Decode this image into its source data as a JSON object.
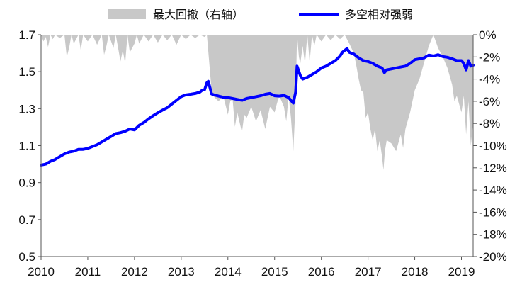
{
  "chart_data": {
    "type": "line",
    "legend": {
      "position": "top",
      "items": [
        {
          "key": "drawdown",
          "label": "最大回撤（右轴）",
          "color": "#c8c8c8",
          "marker": "area"
        },
        {
          "key": "relative",
          "label": "多空相对强弱",
          "color": "#0000ff",
          "marker": "line"
        }
      ]
    },
    "x_axis": {
      "ticks": [
        "2010",
        "2011",
        "2012",
        "2013",
        "2014",
        "2015",
        "2016",
        "2017",
        "2018",
        "2019"
      ],
      "range": [
        2010.0,
        2019.25
      ]
    },
    "y_left": {
      "ticks": [
        "0.5",
        "0.7",
        "0.9",
        "1.1",
        "1.3",
        "1.5",
        "1.7"
      ],
      "range": [
        0.5,
        1.7
      ]
    },
    "y_right": {
      "ticks": [
        "0%",
        "-2%",
        "-4%",
        "-6%",
        "-8%",
        "-10%",
        "-12%",
        "-14%",
        "-16%",
        "-18%",
        "-20%"
      ],
      "range": [
        -20,
        0
      ],
      "unit": "%"
    },
    "grid": false,
    "series": [
      {
        "key": "relative",
        "axis": "left",
        "points": [
          [
            2010.0,
            0.995
          ],
          [
            2010.1,
            1.0
          ],
          [
            2010.2,
            1.015
          ],
          [
            2010.3,
            1.025
          ],
          [
            2010.4,
            1.04
          ],
          [
            2010.5,
            1.055
          ],
          [
            2010.6,
            1.065
          ],
          [
            2010.7,
            1.07
          ],
          [
            2010.8,
            1.08
          ],
          [
            2010.9,
            1.08
          ],
          [
            2011.0,
            1.085
          ],
          [
            2011.1,
            1.095
          ],
          [
            2011.2,
            1.105
          ],
          [
            2011.3,
            1.12
          ],
          [
            2011.4,
            1.135
          ],
          [
            2011.5,
            1.15
          ],
          [
            2011.6,
            1.165
          ],
          [
            2011.7,
            1.17
          ],
          [
            2011.8,
            1.178
          ],
          [
            2011.9,
            1.19
          ],
          [
            2012.0,
            1.185
          ],
          [
            2012.1,
            1.21
          ],
          [
            2012.2,
            1.225
          ],
          [
            2012.3,
            1.245
          ],
          [
            2012.4,
            1.262
          ],
          [
            2012.5,
            1.278
          ],
          [
            2012.6,
            1.292
          ],
          [
            2012.7,
            1.305
          ],
          [
            2012.8,
            1.325
          ],
          [
            2012.9,
            1.345
          ],
          [
            2013.0,
            1.365
          ],
          [
            2013.1,
            1.375
          ],
          [
            2013.2,
            1.378
          ],
          [
            2013.3,
            1.382
          ],
          [
            2013.4,
            1.39
          ],
          [
            2013.45,
            1.4
          ],
          [
            2013.5,
            1.402
          ],
          [
            2013.55,
            1.44
          ],
          [
            2013.58,
            1.448
          ],
          [
            2013.62,
            1.41
          ],
          [
            2013.65,
            1.38
          ],
          [
            2013.7,
            1.375
          ],
          [
            2013.8,
            1.368
          ],
          [
            2013.9,
            1.362
          ],
          [
            2014.0,
            1.36
          ],
          [
            2014.1,
            1.355
          ],
          [
            2014.2,
            1.35
          ],
          [
            2014.3,
            1.345
          ],
          [
            2014.4,
            1.355
          ],
          [
            2014.5,
            1.36
          ],
          [
            2014.6,
            1.365
          ],
          [
            2014.7,
            1.37
          ],
          [
            2014.8,
            1.378
          ],
          [
            2014.9,
            1.382
          ],
          [
            2015.0,
            1.37
          ],
          [
            2015.1,
            1.368
          ],
          [
            2015.2,
            1.372
          ],
          [
            2015.3,
            1.36
          ],
          [
            2015.4,
            1.33
          ],
          [
            2015.45,
            1.39
          ],
          [
            2015.48,
            1.53
          ],
          [
            2015.55,
            1.48
          ],
          [
            2015.6,
            1.46
          ],
          [
            2015.7,
            1.47
          ],
          [
            2015.8,
            1.485
          ],
          [
            2015.9,
            1.5
          ],
          [
            2016.0,
            1.52
          ],
          [
            2016.1,
            1.53
          ],
          [
            2016.2,
            1.545
          ],
          [
            2016.3,
            1.56
          ],
          [
            2016.4,
            1.585
          ],
          [
            2016.45,
            1.605
          ],
          [
            2016.5,
            1.615
          ],
          [
            2016.55,
            1.625
          ],
          [
            2016.6,
            1.605
          ],
          [
            2016.7,
            1.595
          ],
          [
            2016.8,
            1.575
          ],
          [
            2016.9,
            1.56
          ],
          [
            2017.0,
            1.555
          ],
          [
            2017.1,
            1.545
          ],
          [
            2017.2,
            1.53
          ],
          [
            2017.3,
            1.52
          ],
          [
            2017.35,
            1.495
          ],
          [
            2017.4,
            1.51
          ],
          [
            2017.5,
            1.515
          ],
          [
            2017.6,
            1.52
          ],
          [
            2017.7,
            1.525
          ],
          [
            2017.8,
            1.53
          ],
          [
            2017.9,
            1.545
          ],
          [
            2018.0,
            1.565
          ],
          [
            2018.1,
            1.57
          ],
          [
            2018.2,
            1.575
          ],
          [
            2018.3,
            1.59
          ],
          [
            2018.4,
            1.585
          ],
          [
            2018.5,
            1.592
          ],
          [
            2018.6,
            1.582
          ],
          [
            2018.7,
            1.578
          ],
          [
            2018.8,
            1.57
          ],
          [
            2018.9,
            1.56
          ],
          [
            2019.0,
            1.56
          ],
          [
            2019.05,
            1.545
          ],
          [
            2019.1,
            1.51
          ],
          [
            2019.15,
            1.56
          ],
          [
            2019.2,
            1.53
          ],
          [
            2019.25,
            1.535
          ]
        ]
      },
      {
        "key": "drawdown",
        "axis": "right",
        "points": [
          [
            2010.0,
            0.0
          ],
          [
            2010.05,
            -0.6
          ],
          [
            2010.1,
            -0.2
          ],
          [
            2010.15,
            -1.1
          ],
          [
            2010.2,
            0.0
          ],
          [
            2010.25,
            -0.4
          ],
          [
            2010.3,
            0.0
          ],
          [
            2010.4,
            -0.3
          ],
          [
            2010.5,
            0.0
          ],
          [
            2010.55,
            -2.0
          ],
          [
            2010.6,
            -1.2
          ],
          [
            2010.65,
            0.0
          ],
          [
            2010.7,
            -0.8
          ],
          [
            2010.8,
            0.0
          ],
          [
            2010.85,
            -1.4
          ],
          [
            2010.9,
            0.0
          ],
          [
            2011.0,
            -0.6
          ],
          [
            2011.1,
            0.0
          ],
          [
            2011.2,
            -0.9
          ],
          [
            2011.3,
            0.0
          ],
          [
            2011.35,
            -1.8
          ],
          [
            2011.4,
            -1.0
          ],
          [
            2011.45,
            0.0
          ],
          [
            2011.55,
            -1.2
          ],
          [
            2011.6,
            0.0
          ],
          [
            2011.7,
            -2.4
          ],
          [
            2011.75,
            -1.4
          ],
          [
            2011.8,
            -2.6
          ],
          [
            2011.85,
            0.0
          ],
          [
            2011.9,
            -1.6
          ],
          [
            2012.0,
            -0.8
          ],
          [
            2012.05,
            0.0
          ],
          [
            2012.1,
            -0.8
          ],
          [
            2012.2,
            0.0
          ],
          [
            2012.3,
            -0.6
          ],
          [
            2012.4,
            0.0
          ],
          [
            2012.5,
            -0.7
          ],
          [
            2012.6,
            0.0
          ],
          [
            2012.7,
            -0.5
          ],
          [
            2012.8,
            0.0
          ],
          [
            2012.9,
            -0.9
          ],
          [
            2013.0,
            0.0
          ],
          [
            2013.1,
            -0.4
          ],
          [
            2013.2,
            0.0
          ],
          [
            2013.3,
            -0.3
          ],
          [
            2013.4,
            0.0
          ],
          [
            2013.5,
            -0.2
          ],
          [
            2013.55,
            0.0
          ],
          [
            2013.6,
            -2.5
          ],
          [
            2013.65,
            -5.0
          ],
          [
            2013.7,
            -5.6
          ],
          [
            2013.8,
            -6.0
          ],
          [
            2013.9,
            -5.5
          ],
          [
            2014.0,
            -7.2
          ],
          [
            2014.05,
            -6.0
          ],
          [
            2014.1,
            -5.8
          ],
          [
            2014.15,
            -8.3
          ],
          [
            2014.2,
            -7.0
          ],
          [
            2014.3,
            -8.8
          ],
          [
            2014.35,
            -7.2
          ],
          [
            2014.4,
            -7.5
          ],
          [
            2014.5,
            -6.5
          ],
          [
            2014.6,
            -7.8
          ],
          [
            2014.7,
            -6.8
          ],
          [
            2014.8,
            -8.5
          ],
          [
            2014.9,
            -6.5
          ],
          [
            2015.0,
            -7.0
          ],
          [
            2015.05,
            -6.2
          ],
          [
            2015.1,
            -5.5
          ],
          [
            2015.2,
            -6.5
          ],
          [
            2015.25,
            -7.8
          ],
          [
            2015.3,
            -5.5
          ],
          [
            2015.35,
            -7.5
          ],
          [
            2015.4,
            -10.5
          ],
          [
            2015.45,
            -6.0
          ],
          [
            2015.48,
            0.0
          ],
          [
            2015.52,
            -2.0
          ],
          [
            2015.55,
            -2.6
          ],
          [
            2015.6,
            -1.0
          ],
          [
            2015.65,
            -2.6
          ],
          [
            2015.7,
            0.0
          ],
          [
            2015.75,
            -2.5
          ],
          [
            2015.8,
            0.0
          ],
          [
            2015.85,
            -1.0
          ],
          [
            2015.9,
            0.0
          ],
          [
            2016.0,
            -0.6
          ],
          [
            2016.1,
            0.0
          ],
          [
            2016.2,
            -0.5
          ],
          [
            2016.3,
            0.0
          ],
          [
            2016.4,
            -0.4
          ],
          [
            2016.5,
            0.0
          ],
          [
            2016.6,
            -0.8
          ],
          [
            2016.7,
            -1.7
          ],
          [
            2016.75,
            -2.8
          ],
          [
            2016.8,
            -4.0
          ],
          [
            2016.85,
            -5.0
          ],
          [
            2016.9,
            -5.2
          ],
          [
            2016.95,
            -7.5
          ],
          [
            2017.0,
            -7.0
          ],
          [
            2017.05,
            -8.5
          ],
          [
            2017.1,
            -9.5
          ],
          [
            2017.15,
            -8.5
          ],
          [
            2017.2,
            -10.5
          ],
          [
            2017.25,
            -9.5
          ],
          [
            2017.3,
            -11.0
          ],
          [
            2017.33,
            -12.2
          ],
          [
            2017.36,
            -10.5
          ],
          [
            2017.4,
            -9.5
          ],
          [
            2017.5,
            -9.8
          ],
          [
            2017.6,
            -10.5
          ],
          [
            2017.7,
            -9.0
          ],
          [
            2017.75,
            -10.2
          ],
          [
            2017.8,
            -8.5
          ],
          [
            2017.9,
            -7.0
          ],
          [
            2018.0,
            -5.0
          ],
          [
            2018.1,
            -4.0
          ],
          [
            2018.2,
            -2.5
          ],
          [
            2018.3,
            -1.0
          ],
          [
            2018.4,
            0.0
          ],
          [
            2018.5,
            -1.2
          ],
          [
            2018.6,
            -2.0
          ],
          [
            2018.7,
            -3.0
          ],
          [
            2018.8,
            -4.5
          ],
          [
            2018.85,
            -6.0
          ],
          [
            2018.9,
            -5.5
          ],
          [
            2019.0,
            -7.0
          ],
          [
            2019.05,
            -5.5
          ],
          [
            2019.1,
            -9.0
          ],
          [
            2019.15,
            -6.0
          ],
          [
            2019.2,
            -10.0
          ],
          [
            2019.25,
            -8.0
          ]
        ]
      }
    ]
  }
}
